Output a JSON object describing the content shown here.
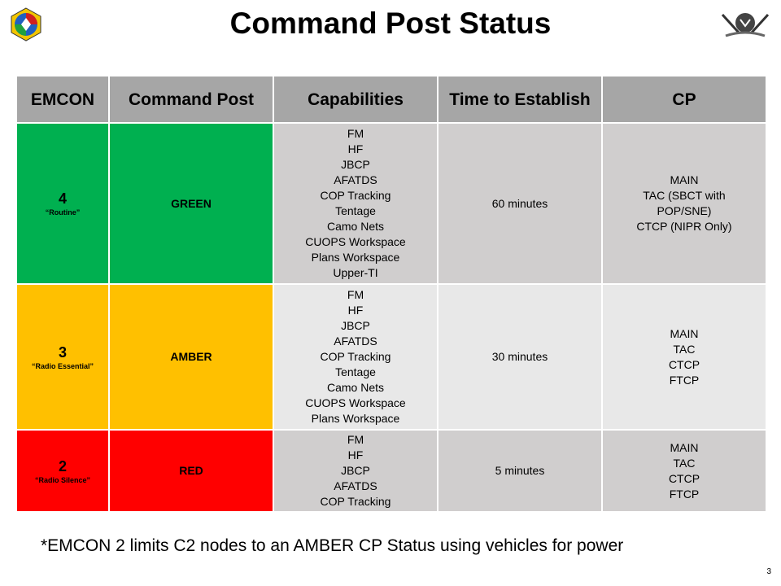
{
  "header": {
    "title": "Command Post Status"
  },
  "table": {
    "columns": [
      "EMCON",
      "Command Post",
      "Capabilities",
      "Time to Establish",
      "CP"
    ],
    "rows": [
      {
        "emcon": "4",
        "emcon_name": "“Routine”",
        "command_post": "GREEN",
        "capabilities": [
          "FM",
          "HF",
          "JBCP",
          "AFATDS",
          "COP Tracking",
          "Tentage",
          "Camo Nets",
          "CUOPS Workspace",
          "Plans Workspace",
          "Upper-TI"
        ],
        "time": "60 minutes",
        "cp": [
          "MAIN",
          "TAC (SBCT with POP/SNE)",
          "CTCP (NIPR  Only)"
        ]
      },
      {
        "emcon": "3",
        "emcon_name": "“Radio Essential”",
        "command_post": "AMBER",
        "capabilities": [
          "FM",
          "HF",
          "JBCP",
          "AFATDS",
          "COP Tracking",
          "Tentage",
          "Camo Nets",
          "CUOPS Workspace",
          "Plans Workspace"
        ],
        "time": "30 minutes",
        "cp": [
          "MAIN",
          "TAC",
          "CTCP",
          "FTCP"
        ]
      },
      {
        "emcon": "2",
        "emcon_name": "“Radio Silence”",
        "command_post": "RED",
        "capabilities": [
          "FM",
          "HF",
          "JBCP",
          "AFATDS",
          "COP Tracking"
        ],
        "time": "5 minutes",
        "cp": [
          "MAIN",
          "TAC",
          "CTCP",
          "FTCP"
        ]
      }
    ]
  },
  "footnote": "*EMCON 2 limits C2 nodes to an AMBER CP Status using vehicles for power",
  "page_number": "3"
}
